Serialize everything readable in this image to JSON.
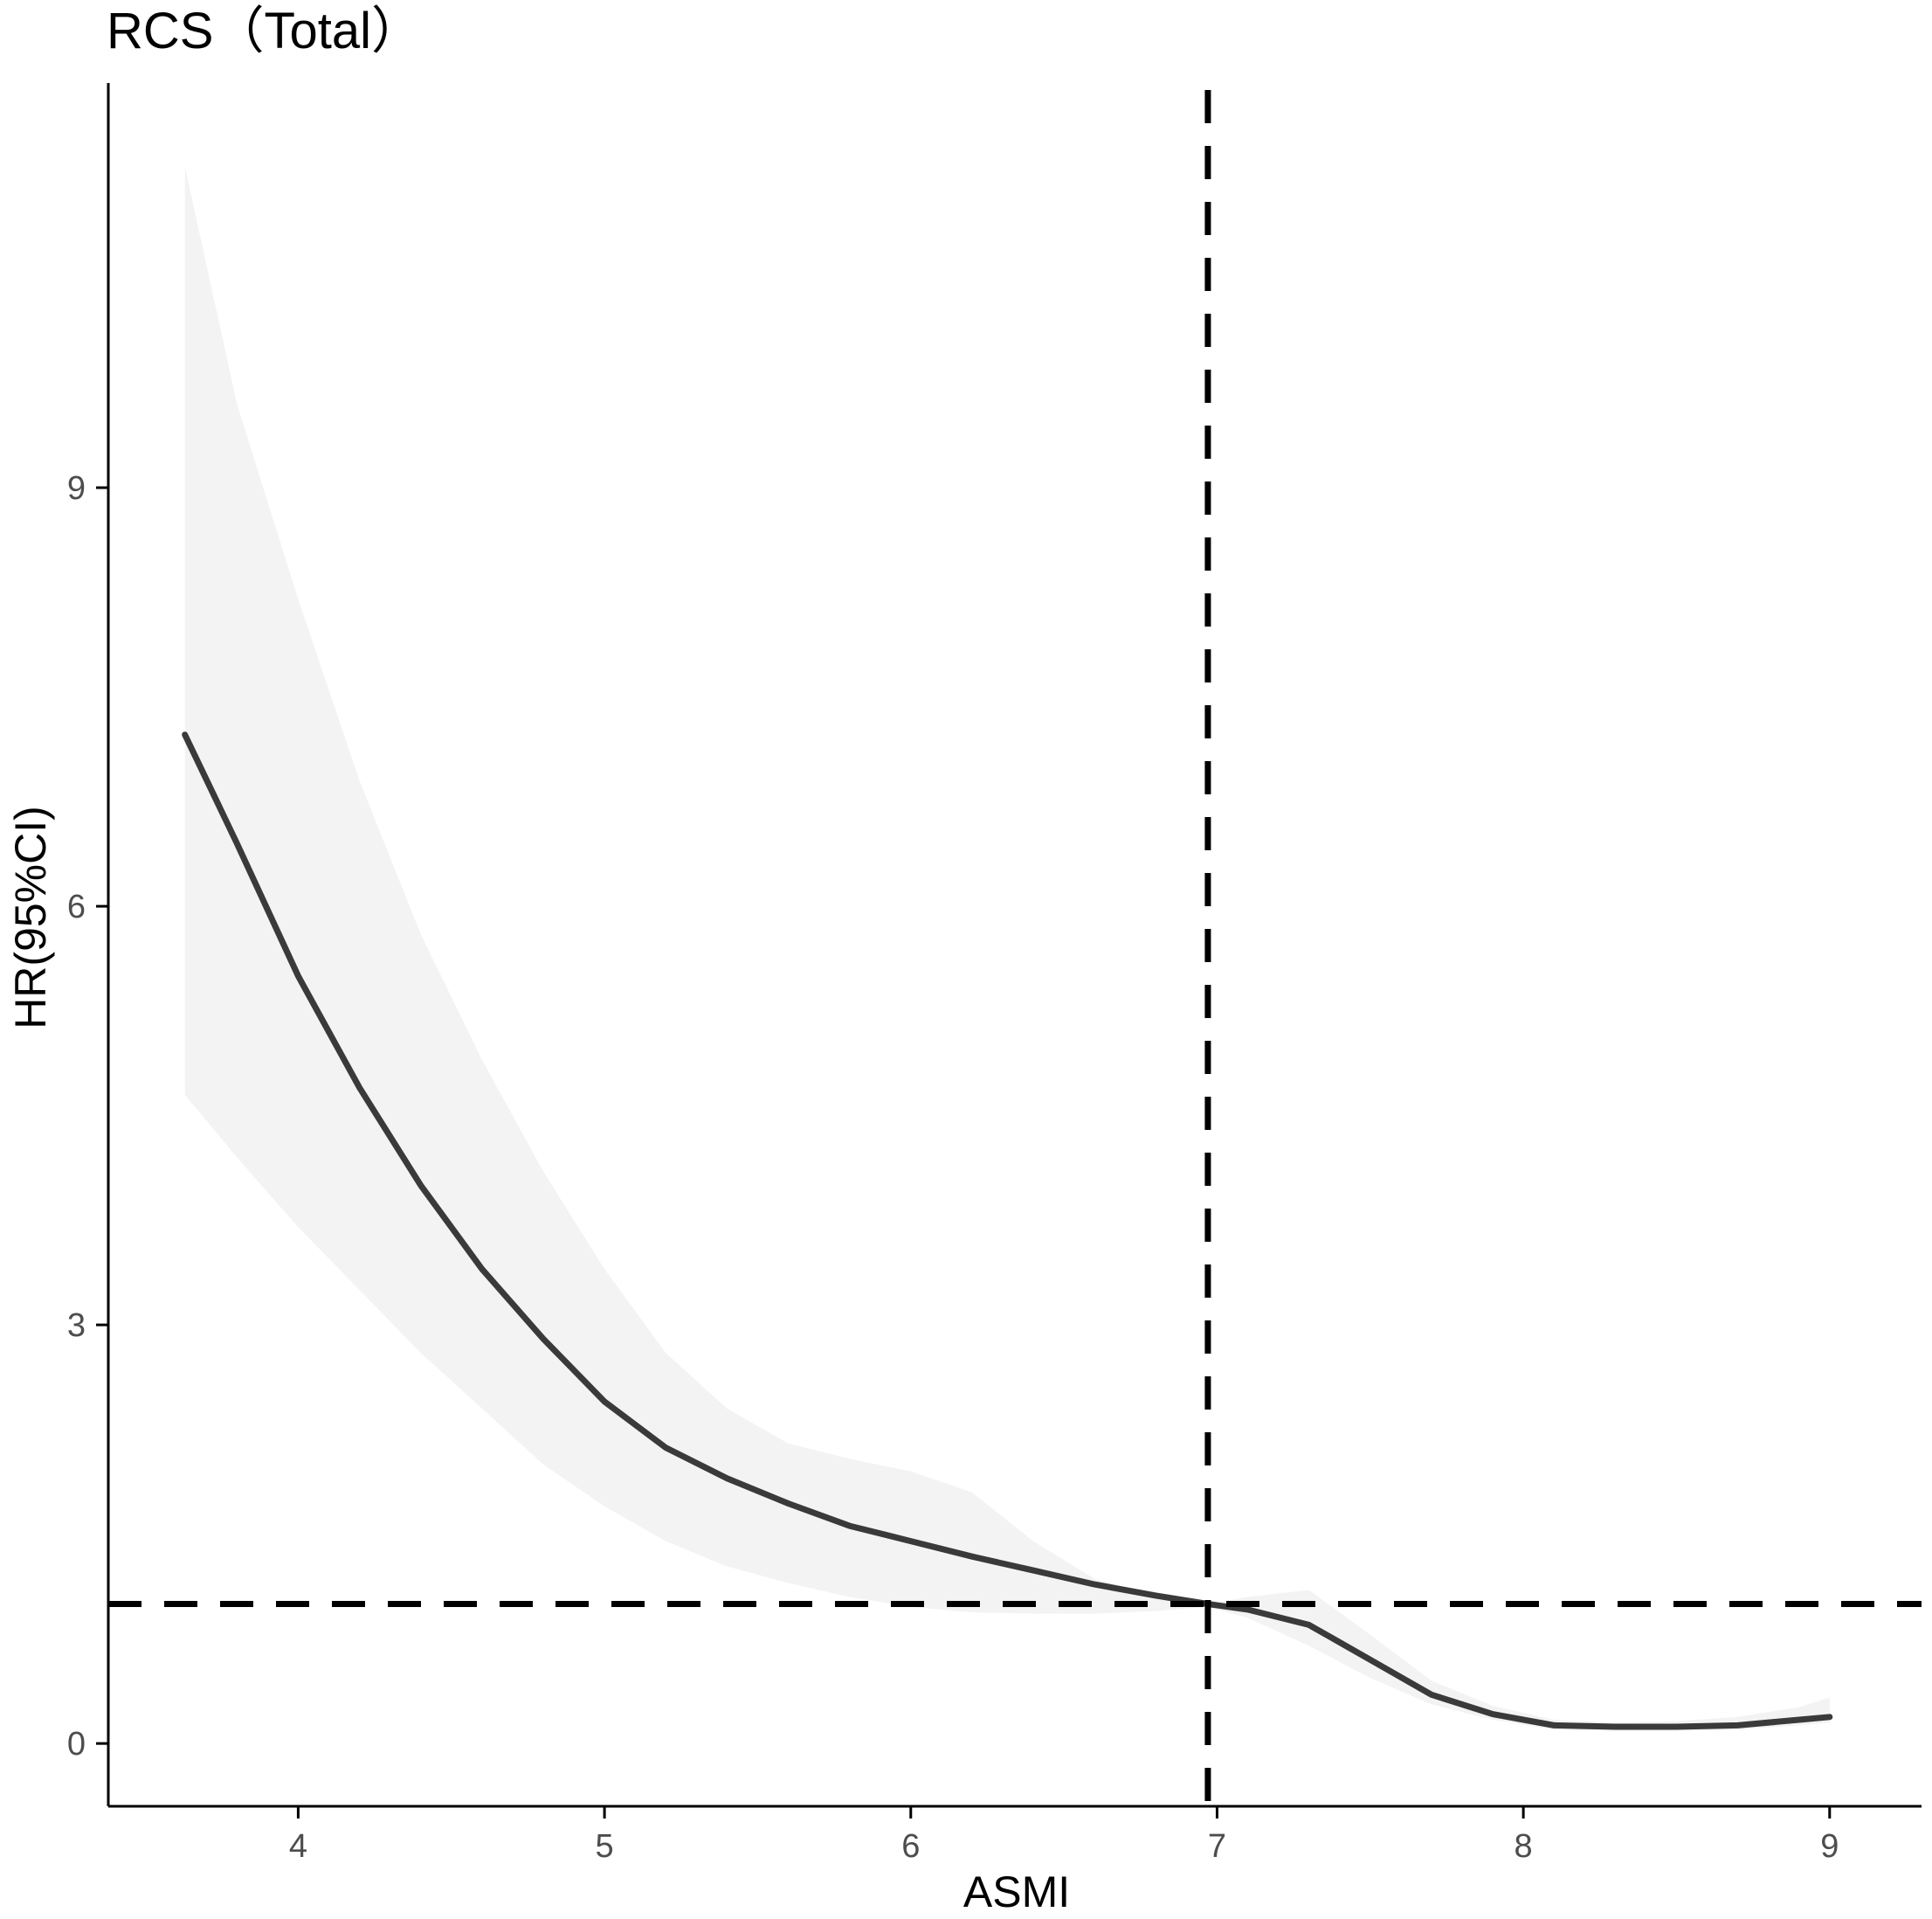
{
  "chart_data": {
    "type": "line",
    "title": "RCS（Total）",
    "xlabel": "ASMI",
    "ylabel": "HR(95%CI)",
    "xlim": [
      3.38,
      9.3
    ],
    "ylim": [
      -0.45,
      11.9
    ],
    "x_ticks": [
      4,
      5,
      6,
      7,
      8,
      9
    ],
    "y_ticks": [
      0,
      3,
      6,
      9
    ],
    "grid": false,
    "reference_lines": {
      "hr": 1,
      "asmi": 6.97
    },
    "series": [
      {
        "x": [
          3.63,
          3.8,
          4.0,
          4.2,
          4.4,
          4.6,
          4.8,
          5.0,
          5.2,
          5.4,
          5.6,
          5.8,
          6.0,
          6.2,
          6.4,
          6.6,
          6.8,
          6.97,
          7.1,
          7.3,
          7.5,
          7.7,
          7.9,
          8.1,
          8.3,
          8.5,
          8.7,
          8.9,
          9.0
        ],
        "y": [
          7.23,
          6.45,
          5.5,
          4.7,
          4.0,
          3.4,
          2.9,
          2.45,
          2.12,
          1.9,
          1.72,
          1.56,
          1.45,
          1.34,
          1.24,
          1.14,
          1.06,
          1.0,
          0.96,
          0.85,
          0.6,
          0.35,
          0.21,
          0.13,
          0.12,
          0.12,
          0.13,
          0.17,
          0.19
        ],
        "lower": [
          4.65,
          4.2,
          3.7,
          3.25,
          2.8,
          2.4,
          2.0,
          1.7,
          1.45,
          1.27,
          1.15,
          1.05,
          0.98,
          0.94,
          0.93,
          0.93,
          0.95,
          0.98,
          0.9,
          0.7,
          0.47,
          0.28,
          0.17,
          0.1,
          0.09,
          0.09,
          0.1,
          0.13,
          0.15
        ],
        "upper": [
          11.3,
          9.6,
          8.2,
          6.9,
          5.8,
          4.9,
          4.1,
          3.4,
          2.8,
          2.4,
          2.15,
          2.04,
          1.95,
          1.8,
          1.45,
          1.18,
          1.06,
          1.0,
          1.05,
          1.1,
          0.78,
          0.45,
          0.27,
          0.17,
          0.15,
          0.16,
          0.19,
          0.26,
          0.33
        ]
      }
    ],
    "colors": {
      "line": "#3a3a3a",
      "ci_band": "#f3f3f3",
      "reference": "#000000",
      "axis": "#000000",
      "tick_text": "#4d4d4d"
    }
  }
}
